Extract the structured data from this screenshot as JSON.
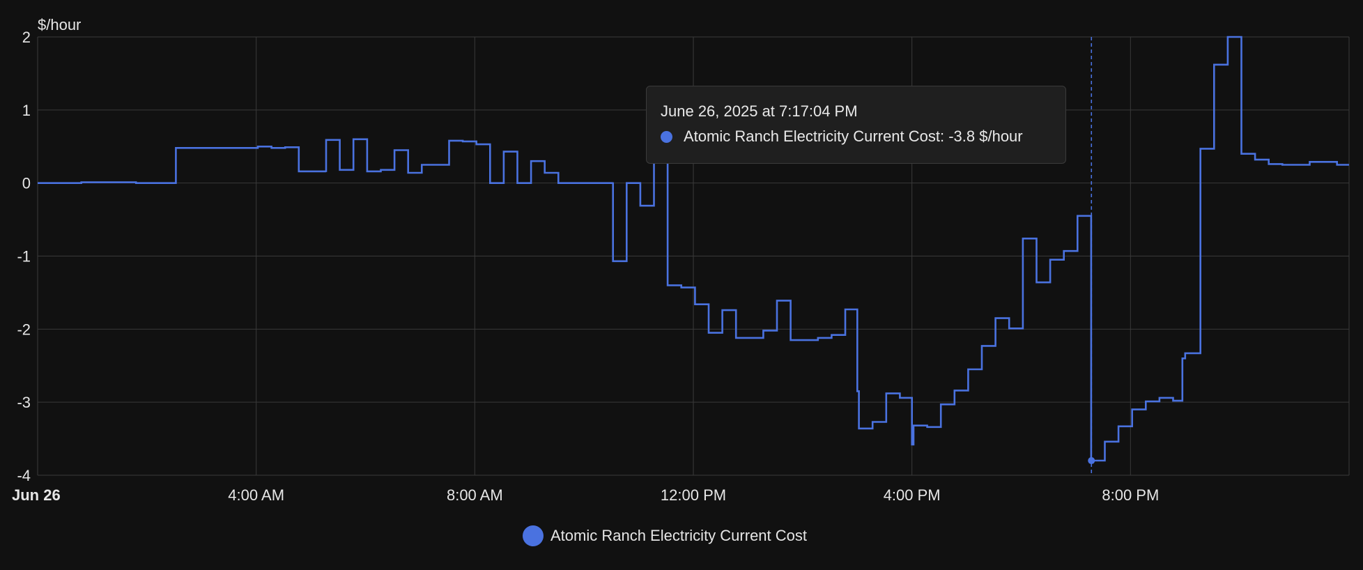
{
  "theme": {
    "background": "#111111",
    "grid": "#3a3a3a",
    "series_color": "#4a72e0",
    "tooltip_bg": "#1f1f1f"
  },
  "chart_data": {
    "type": "line",
    "step": true,
    "y_unit": "$/hour",
    "ylim": [
      -4,
      2
    ],
    "y_ticks": [
      "2",
      "1",
      "0",
      "-1",
      "-2",
      "-3",
      "-4"
    ],
    "x_range_hours": [
      0,
      24
    ],
    "x_ticks": [
      {
        "label": "Jun 26",
        "hour": 0,
        "bold": true
      },
      {
        "label": "4:00 AM",
        "hour": 4
      },
      {
        "label": "8:00 AM",
        "hour": 8
      },
      {
        "label": "12:00 PM",
        "hour": 12
      },
      {
        "label": "4:00 PM",
        "hour": 16
      },
      {
        "label": "8:00 PM",
        "hour": 20
      }
    ],
    "grid": true,
    "legend_position": "bottom-center",
    "series": [
      {
        "name": "Atomic Ranch Electricity Current Cost",
        "points": [
          [
            0.0,
            0.0
          ],
          [
            0.8,
            0.01
          ],
          [
            1.8,
            0.0
          ],
          [
            2.53,
            0.48
          ],
          [
            4.03,
            0.5
          ],
          [
            4.28,
            0.48
          ],
          [
            4.53,
            0.49
          ],
          [
            4.78,
            0.16
          ],
          [
            5.28,
            0.15
          ],
          [
            5.28,
            0.59
          ],
          [
            5.53,
            0.18
          ],
          [
            5.78,
            0.6
          ],
          [
            6.03,
            0.16
          ],
          [
            6.28,
            0.18
          ],
          [
            6.53,
            0.45
          ],
          [
            6.78,
            0.14
          ],
          [
            7.03,
            0.25
          ],
          [
            7.53,
            0.58
          ],
          [
            7.78,
            0.57
          ],
          [
            8.03,
            0.53
          ],
          [
            8.28,
            0.0
          ],
          [
            8.53,
            0.43
          ],
          [
            8.78,
            0.0
          ],
          [
            9.03,
            0.3
          ],
          [
            9.28,
            0.14
          ],
          [
            9.53,
            0.0
          ],
          [
            10.53,
            0.01
          ],
          [
            10.53,
            -1.07
          ],
          [
            10.78,
            0.0
          ],
          [
            11.03,
            -0.31
          ],
          [
            11.28,
            0.45
          ],
          [
            11.53,
            -1.4
          ],
          [
            11.78,
            -1.43
          ],
          [
            12.03,
            -1.66
          ],
          [
            12.28,
            -2.05
          ],
          [
            12.53,
            -1.74
          ],
          [
            12.78,
            -2.12
          ],
          [
            13.28,
            -2.02
          ],
          [
            13.53,
            -1.61
          ],
          [
            13.78,
            -2.15
          ],
          [
            14.28,
            -2.12
          ],
          [
            14.53,
            -2.08
          ],
          [
            14.78,
            -1.73
          ],
          [
            15.0,
            -2.85
          ],
          [
            15.03,
            -3.36
          ],
          [
            15.28,
            -3.27
          ],
          [
            15.53,
            -2.88
          ],
          [
            15.78,
            -2.94
          ],
          [
            16.0,
            -3.58
          ],
          [
            16.03,
            -3.32
          ],
          [
            16.28,
            -3.34
          ],
          [
            16.53,
            -3.03
          ],
          [
            16.78,
            -2.84
          ],
          [
            17.03,
            -2.55
          ],
          [
            17.28,
            -2.23
          ],
          [
            17.53,
            -1.85
          ],
          [
            17.78,
            -1.99
          ],
          [
            18.03,
            -0.76
          ],
          [
            18.28,
            -1.36
          ],
          [
            18.53,
            -1.05
          ],
          [
            18.78,
            -0.93
          ],
          [
            19.03,
            -0.45
          ],
          [
            19.28,
            -3.8
          ],
          [
            19.53,
            -3.54
          ],
          [
            19.78,
            -3.33
          ],
          [
            20.03,
            -3.1
          ],
          [
            20.28,
            -2.99
          ],
          [
            20.53,
            -2.94
          ],
          [
            20.78,
            -2.98
          ],
          [
            20.95,
            -2.4
          ],
          [
            21.0,
            -2.33
          ],
          [
            21.28,
            0.47
          ],
          [
            21.53,
            1.62
          ],
          [
            21.78,
            2.0
          ],
          [
            22.03,
            0.4
          ],
          [
            22.28,
            0.32
          ],
          [
            22.53,
            0.26
          ],
          [
            22.78,
            0.25
          ],
          [
            23.28,
            0.29
          ],
          [
            23.78,
            0.25
          ],
          [
            24.0,
            0.25
          ]
        ]
      }
    ],
    "cursor": {
      "hour": 19.285,
      "value": -3.8
    }
  },
  "tooltip": {
    "date": "June 26, 2025 at 7:17:04 PM",
    "line": "Atomic Ranch Electricity Current Cost: -3.8 $/hour"
  },
  "legend": {
    "label": "Atomic Ranch Electricity Current Cost"
  }
}
